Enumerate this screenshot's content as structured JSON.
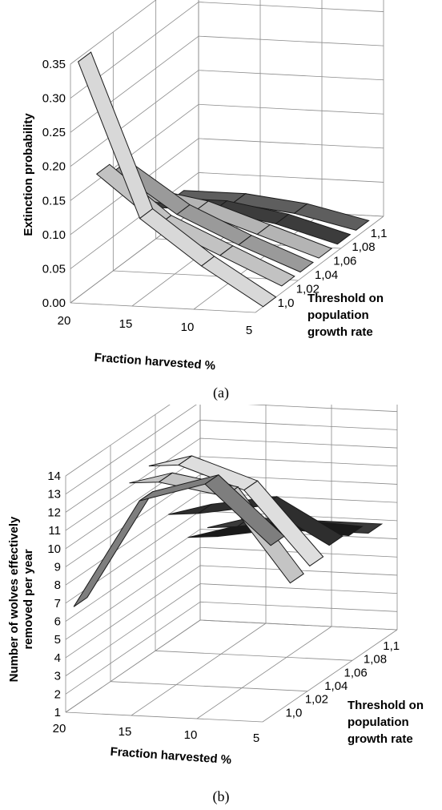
{
  "figure": {
    "caption_a": "(a)",
    "caption_b": "(b)"
  },
  "chart_data": [
    {
      "type": "line",
      "projection": "3d-ribbon",
      "ylabel": "Extinction probability",
      "xlabel": "Fraction harvested %",
      "zlabel": [
        "Threshold on",
        "population",
        "growth rate"
      ],
      "x": [
        20,
        15,
        10,
        5
      ],
      "yticks": [
        "0.00",
        "0.05",
        "0.10",
        "0.15",
        "0.20",
        "0.25",
        "0.30",
        "0.35"
      ],
      "ylim": [
        0,
        0.35
      ],
      "zticks": [
        "1,0",
        "1,02",
        "1,04",
        "1,06",
        "1,08",
        "1,1"
      ],
      "series": [
        {
          "name": "1,0",
          "color": "#d8d8d8",
          "values": [
            0.345,
            0.12,
            0.055,
            0.0
          ]
        },
        {
          "name": "1,02",
          "color": "#c2c2c2",
          "values": [
            0.16,
            0.09,
            0.05,
            0.01
          ]
        },
        {
          "name": "1,04",
          "color": "#9a9a9a",
          "values": [
            0.145,
            0.085,
            0.045,
            0.01
          ]
        },
        {
          "name": "1,06",
          "color": "#b4b4b4",
          "values": [
            0.085,
            0.07,
            0.04,
            0.01
          ]
        },
        {
          "name": "1,08",
          "color": "#3c3c3c",
          "values": [
            0.05,
            0.05,
            0.035,
            0.01
          ]
        },
        {
          "name": "1,1",
          "color": "#5e5e5e",
          "values": [
            0.04,
            0.04,
            0.03,
            0.01
          ]
        }
      ]
    },
    {
      "type": "line",
      "projection": "3d-ribbon",
      "ylabel": "Number of wolves effectively removed per year",
      "xlabel": "Fraction harvested %",
      "zlabel": [
        "Threshold on",
        "population",
        "growth rate"
      ],
      "x": [
        20,
        15,
        10,
        5
      ],
      "yticks": [
        "1",
        "2",
        "3",
        "4",
        "5",
        "6",
        "7",
        "8",
        "9",
        "10",
        "11",
        "12",
        "13",
        "14"
      ],
      "ylim": [
        1,
        14
      ],
      "zticks": [
        "1,0",
        "1,02",
        "1,04",
        "1,06",
        "1,08",
        "1,1"
      ],
      "series": [
        {
          "name": "1,0",
          "color": "#7e7e7e",
          "values": [
            6.5,
            12.5,
            13.6,
            10.4
          ]
        },
        {
          "name": "1,02",
          "color": "#c4c4c4",
          "values": [
            null,
            12.8,
            12.2,
            7.6
          ]
        },
        {
          "name": "1,04",
          "color": "#dedede",
          "values": [
            null,
            13.0,
            11.8,
            7.8
          ]
        },
        {
          "name": "1,06",
          "color": "#2e2e2e",
          "values": [
            null,
            9.6,
            10.2,
            8.2
          ]
        },
        {
          "name": "1,08",
          "color": "#1a1a1a",
          "values": [
            null,
            7.6,
            8.2,
            8.0
          ]
        },
        {
          "name": "1,1",
          "color": "#3a3a3a",
          "values": [
            null,
            7.4,
            7.4,
            7.4
          ]
        }
      ]
    }
  ]
}
